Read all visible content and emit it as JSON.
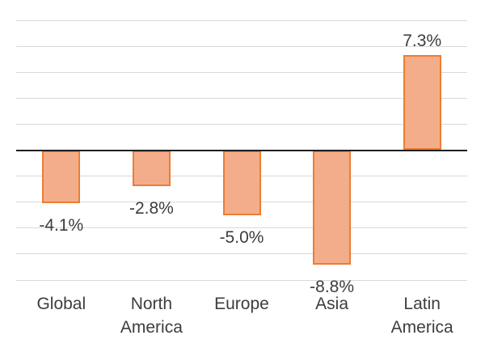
{
  "chart_data": {
    "type": "bar",
    "title": "",
    "xlabel": "",
    "ylabel": "",
    "categories": [
      "Global",
      "North America",
      "Europe",
      "Asia",
      "Latin America"
    ],
    "values": [
      -4.1,
      -2.8,
      -5.0,
      -8.8,
      7.3
    ],
    "data_labels": [
      "-4.1%",
      "-2.8%",
      "-5.0%",
      "-8.8%",
      "7.3%"
    ],
    "ylim": [
      -10,
      10
    ],
    "gridline_step": 2,
    "grid": true,
    "legend_position": "none",
    "data_label_position": "outside-end"
  },
  "style": {
    "background": "#FFFFFF",
    "bar_fill": "#F4AD8B",
    "bar_border": "#ED7D31",
    "gridline_color": "#D9D9D9",
    "axis_color": "#1F1F1F",
    "label_color": "#3D3D3D"
  }
}
